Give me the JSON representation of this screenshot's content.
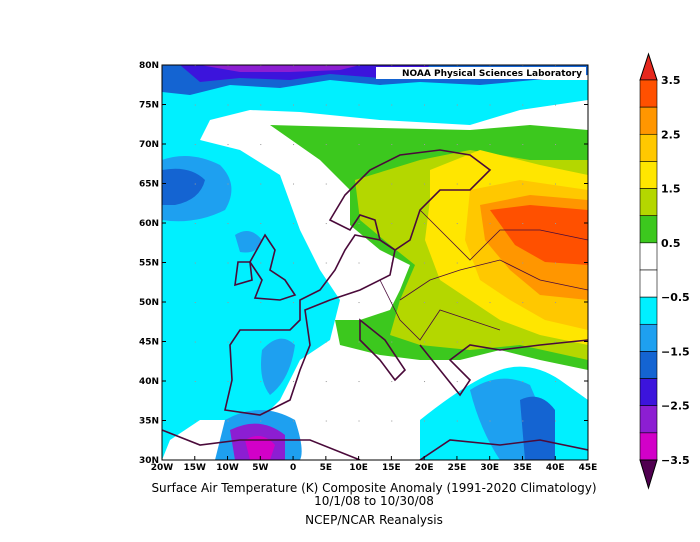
{
  "map": {
    "lab": "NOAA Physical Sciences Laboratory",
    "lat_labels": [
      "80N",
      "75N",
      "70N",
      "65N",
      "60N",
      "55N",
      "50N",
      "45N",
      "40N",
      "35N",
      "30N"
    ],
    "lon_labels": [
      "20W",
      "15W",
      "10W",
      "5W",
      "0",
      "5E",
      "10E",
      "15E",
      "20E",
      "25E",
      "30E",
      "35E",
      "40E",
      "45E"
    ],
    "title": "Surface Air Temperature (K) Composite Anomaly (1991-2020 Climatology)",
    "dates": "10/1/08  to 10/30/08",
    "source": "NCEP/NCAR Reanalysis"
  },
  "colorbar": {
    "labels": [
      "3.5",
      "2.5",
      "1.5",
      "0.5",
      "−0.5",
      "−1.5",
      "−2.5",
      "−3.5"
    ],
    "colors": [
      "#ff5000",
      "#ff9600",
      "#ffc800",
      "#ffe600",
      "#b4d700",
      "#3cc81e",
      "#ffffff",
      "#ffffff",
      "#00f0ff",
      "#1ea0f0",
      "#1464d2",
      "#3c14dc",
      "#8c1ed2",
      "#d200c8"
    ],
    "top_color": "#e6281e",
    "bottom_color": "#500050"
  }
}
